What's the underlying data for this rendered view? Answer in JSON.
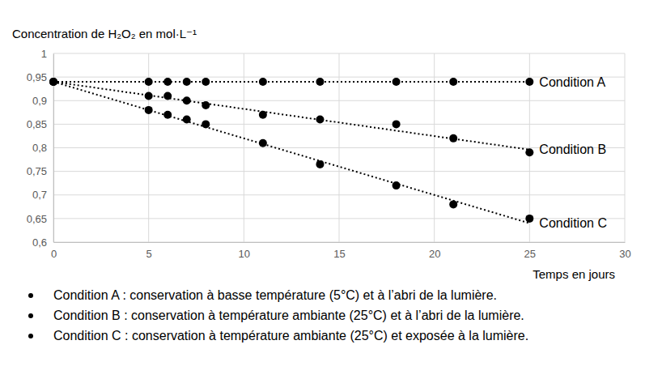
{
  "chart_data": {
    "type": "scatter",
    "y_label": "Concentration de H₂O₂ en mol·L⁻¹",
    "x_label": "Temps en jours",
    "x": [
      0,
      5,
      6,
      7,
      8,
      11,
      14,
      18,
      21,
      25
    ],
    "trend_x": [
      0,
      25
    ],
    "series": [
      {
        "name": "Condition A",
        "color": "#000000",
        "marker": "circle",
        "line_style": "dotted",
        "values": [
          0.94,
          0.94,
          0.94,
          0.94,
          0.94,
          0.94,
          0.94,
          0.94,
          0.94,
          0.94
        ],
        "trend": [
          0.94,
          0.94
        ]
      },
      {
        "name": "Condition B",
        "color": "#000000",
        "marker": "circle",
        "line_style": "dotted",
        "values": [
          0.94,
          0.91,
          0.91,
          0.9,
          0.89,
          0.87,
          0.86,
          0.85,
          0.82,
          0.79
        ],
        "trend": [
          0.94,
          0.796
        ]
      },
      {
        "name": "Condition C",
        "color": "#000000",
        "marker": "circle",
        "line_style": "dotted",
        "values": [
          0.94,
          0.88,
          0.87,
          0.86,
          0.85,
          0.81,
          0.765,
          0.72,
          0.68,
          0.65
        ],
        "trend": [
          0.94,
          0.64
        ]
      }
    ],
    "xlim": [
      0,
      30
    ],
    "xticks": [
      0,
      5,
      10,
      15,
      20,
      25,
      30
    ],
    "ylim": [
      0.6,
      1
    ],
    "yticks": [
      {
        "value": 0.6,
        "label": "0,6"
      },
      {
        "value": 0.65,
        "label": "0,65"
      },
      {
        "value": 0.7,
        "label": "0,7"
      },
      {
        "value": 0.75,
        "label": "0,75"
      },
      {
        "value": 0.8,
        "label": "0,8"
      },
      {
        "value": 0.85,
        "label": "0,85"
      },
      {
        "value": 0.9,
        "label": "0,9"
      },
      {
        "value": 0.95,
        "label": "0,95"
      },
      {
        "value": 1,
        "label": "1"
      }
    ],
    "grid": true,
    "notes": [
      "Condition A : conservation à basse température (5°C) et à l’abri de la lumière.",
      "Condition B : conservation à température ambiante (25°C) et à l’abri de la lumière.",
      "Condition C : conservation à température ambiante (25°C) et exposée à la lumière."
    ]
  }
}
